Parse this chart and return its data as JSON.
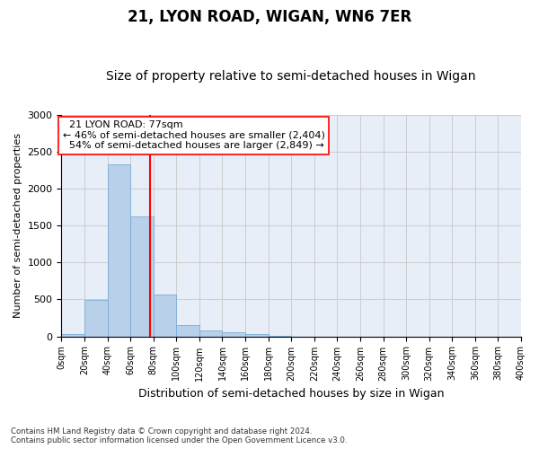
{
  "title": "21, LYON ROAD, WIGAN, WN6 7ER",
  "subtitle": "Size of property relative to semi-detached houses in Wigan",
  "xlabel": "Distribution of semi-detached houses by size in Wigan",
  "ylabel": "Number of semi-detached properties",
  "footer1": "Contains HM Land Registry data © Crown copyright and database right 2024.",
  "footer2": "Contains public sector information licensed under the Open Government Licence v3.0.",
  "bin_edges": [
    0,
    20,
    40,
    60,
    80,
    100,
    120,
    140,
    160,
    180,
    200,
    220,
    240,
    260,
    280,
    300,
    320,
    340,
    360,
    380,
    400
  ],
  "bar_values": [
    30,
    490,
    2330,
    1620,
    565,
    155,
    85,
    55,
    35,
    10,
    0,
    0,
    0,
    0,
    0,
    0,
    0,
    0,
    0,
    0
  ],
  "bar_color": "#b8d0ea",
  "bar_edgecolor": "#7aadd4",
  "property_size": 77,
  "property_label": "21 LYON ROAD: 77sqm",
  "pct_smaller": 46,
  "count_smaller": 2404,
  "pct_larger": 54,
  "count_larger": 2849,
  "vline_color": "red",
  "annotation_box_edgecolor": "red",
  "ylim": [
    0,
    3000
  ],
  "yticks": [
    0,
    500,
    1000,
    1500,
    2000,
    2500,
    3000
  ],
  "grid_color": "#cccccc",
  "bg_color": "#e8eef8",
  "title_fontsize": 12,
  "subtitle_fontsize": 10,
  "annotation_fontsize": 8
}
